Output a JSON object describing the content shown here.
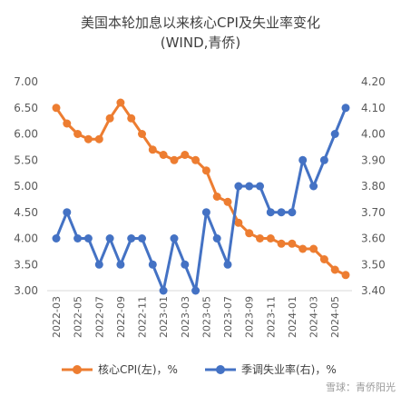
{
  "chart_data": {
    "type": "line",
    "title": "美国本轮加息以来核心CPI及失业率变化",
    "subtitle": "(WIND,青侨)",
    "x": [
      "2022-03",
      "2022-04",
      "2022-05",
      "2022-06",
      "2022-07",
      "2022-08",
      "2022-09",
      "2022-10",
      "2022-11",
      "2022-12",
      "2023-01",
      "2023-02",
      "2023-03",
      "2023-04",
      "2023-05",
      "2023-06",
      "2023-07",
      "2023-08",
      "2023-09",
      "2023-10",
      "2023-11",
      "2023-12",
      "2024-01",
      "2024-02",
      "2024-03",
      "2024-04",
      "2024-05",
      "2024-06"
    ],
    "x_tick_labels": [
      "2022-03",
      "2022-05",
      "2022-07",
      "2022-09",
      "2022-11",
      "2023-01",
      "2023-03",
      "2023-05",
      "2023-07",
      "2023-09",
      "2023-11",
      "2024-01",
      "2024-03",
      "2024-05"
    ],
    "series": [
      {
        "name": "核心CPI(左)，%",
        "axis": "left",
        "color": "#ED7D31",
        "values": [
          6.5,
          6.2,
          6.0,
          5.9,
          5.9,
          6.3,
          6.6,
          6.3,
          6.0,
          5.7,
          5.6,
          5.5,
          5.6,
          5.5,
          5.3,
          4.8,
          4.7,
          4.3,
          4.1,
          4.0,
          4.0,
          3.9,
          3.9,
          3.8,
          3.8,
          3.6,
          3.4,
          3.3
        ]
      },
      {
        "name": "季调失业率(右)，%",
        "axis": "right",
        "color": "#4472C4",
        "values": [
          3.6,
          3.7,
          3.6,
          3.6,
          3.5,
          3.6,
          3.5,
          3.6,
          3.6,
          3.5,
          3.4,
          3.6,
          3.5,
          3.4,
          3.7,
          3.6,
          3.5,
          3.8,
          3.8,
          3.8,
          3.7,
          3.7,
          3.7,
          3.9,
          3.8,
          3.9,
          4.0,
          4.1
        ]
      }
    ],
    "y_left": {
      "ylim": [
        3.0,
        7.0
      ],
      "ticks": [
        "3.00",
        "3.50",
        "4.00",
        "4.50",
        "5.00",
        "5.50",
        "6.00",
        "6.50",
        "7.00"
      ]
    },
    "y_right": {
      "ylim": [
        3.4,
        4.2
      ],
      "ticks": [
        "3.40",
        "3.50",
        "3.60",
        "3.70",
        "3.80",
        "3.90",
        "4.00",
        "4.10",
        "4.20"
      ]
    },
    "grid": false,
    "legend_position": "bottom"
  },
  "watermark": "雪球：青侨阳光"
}
